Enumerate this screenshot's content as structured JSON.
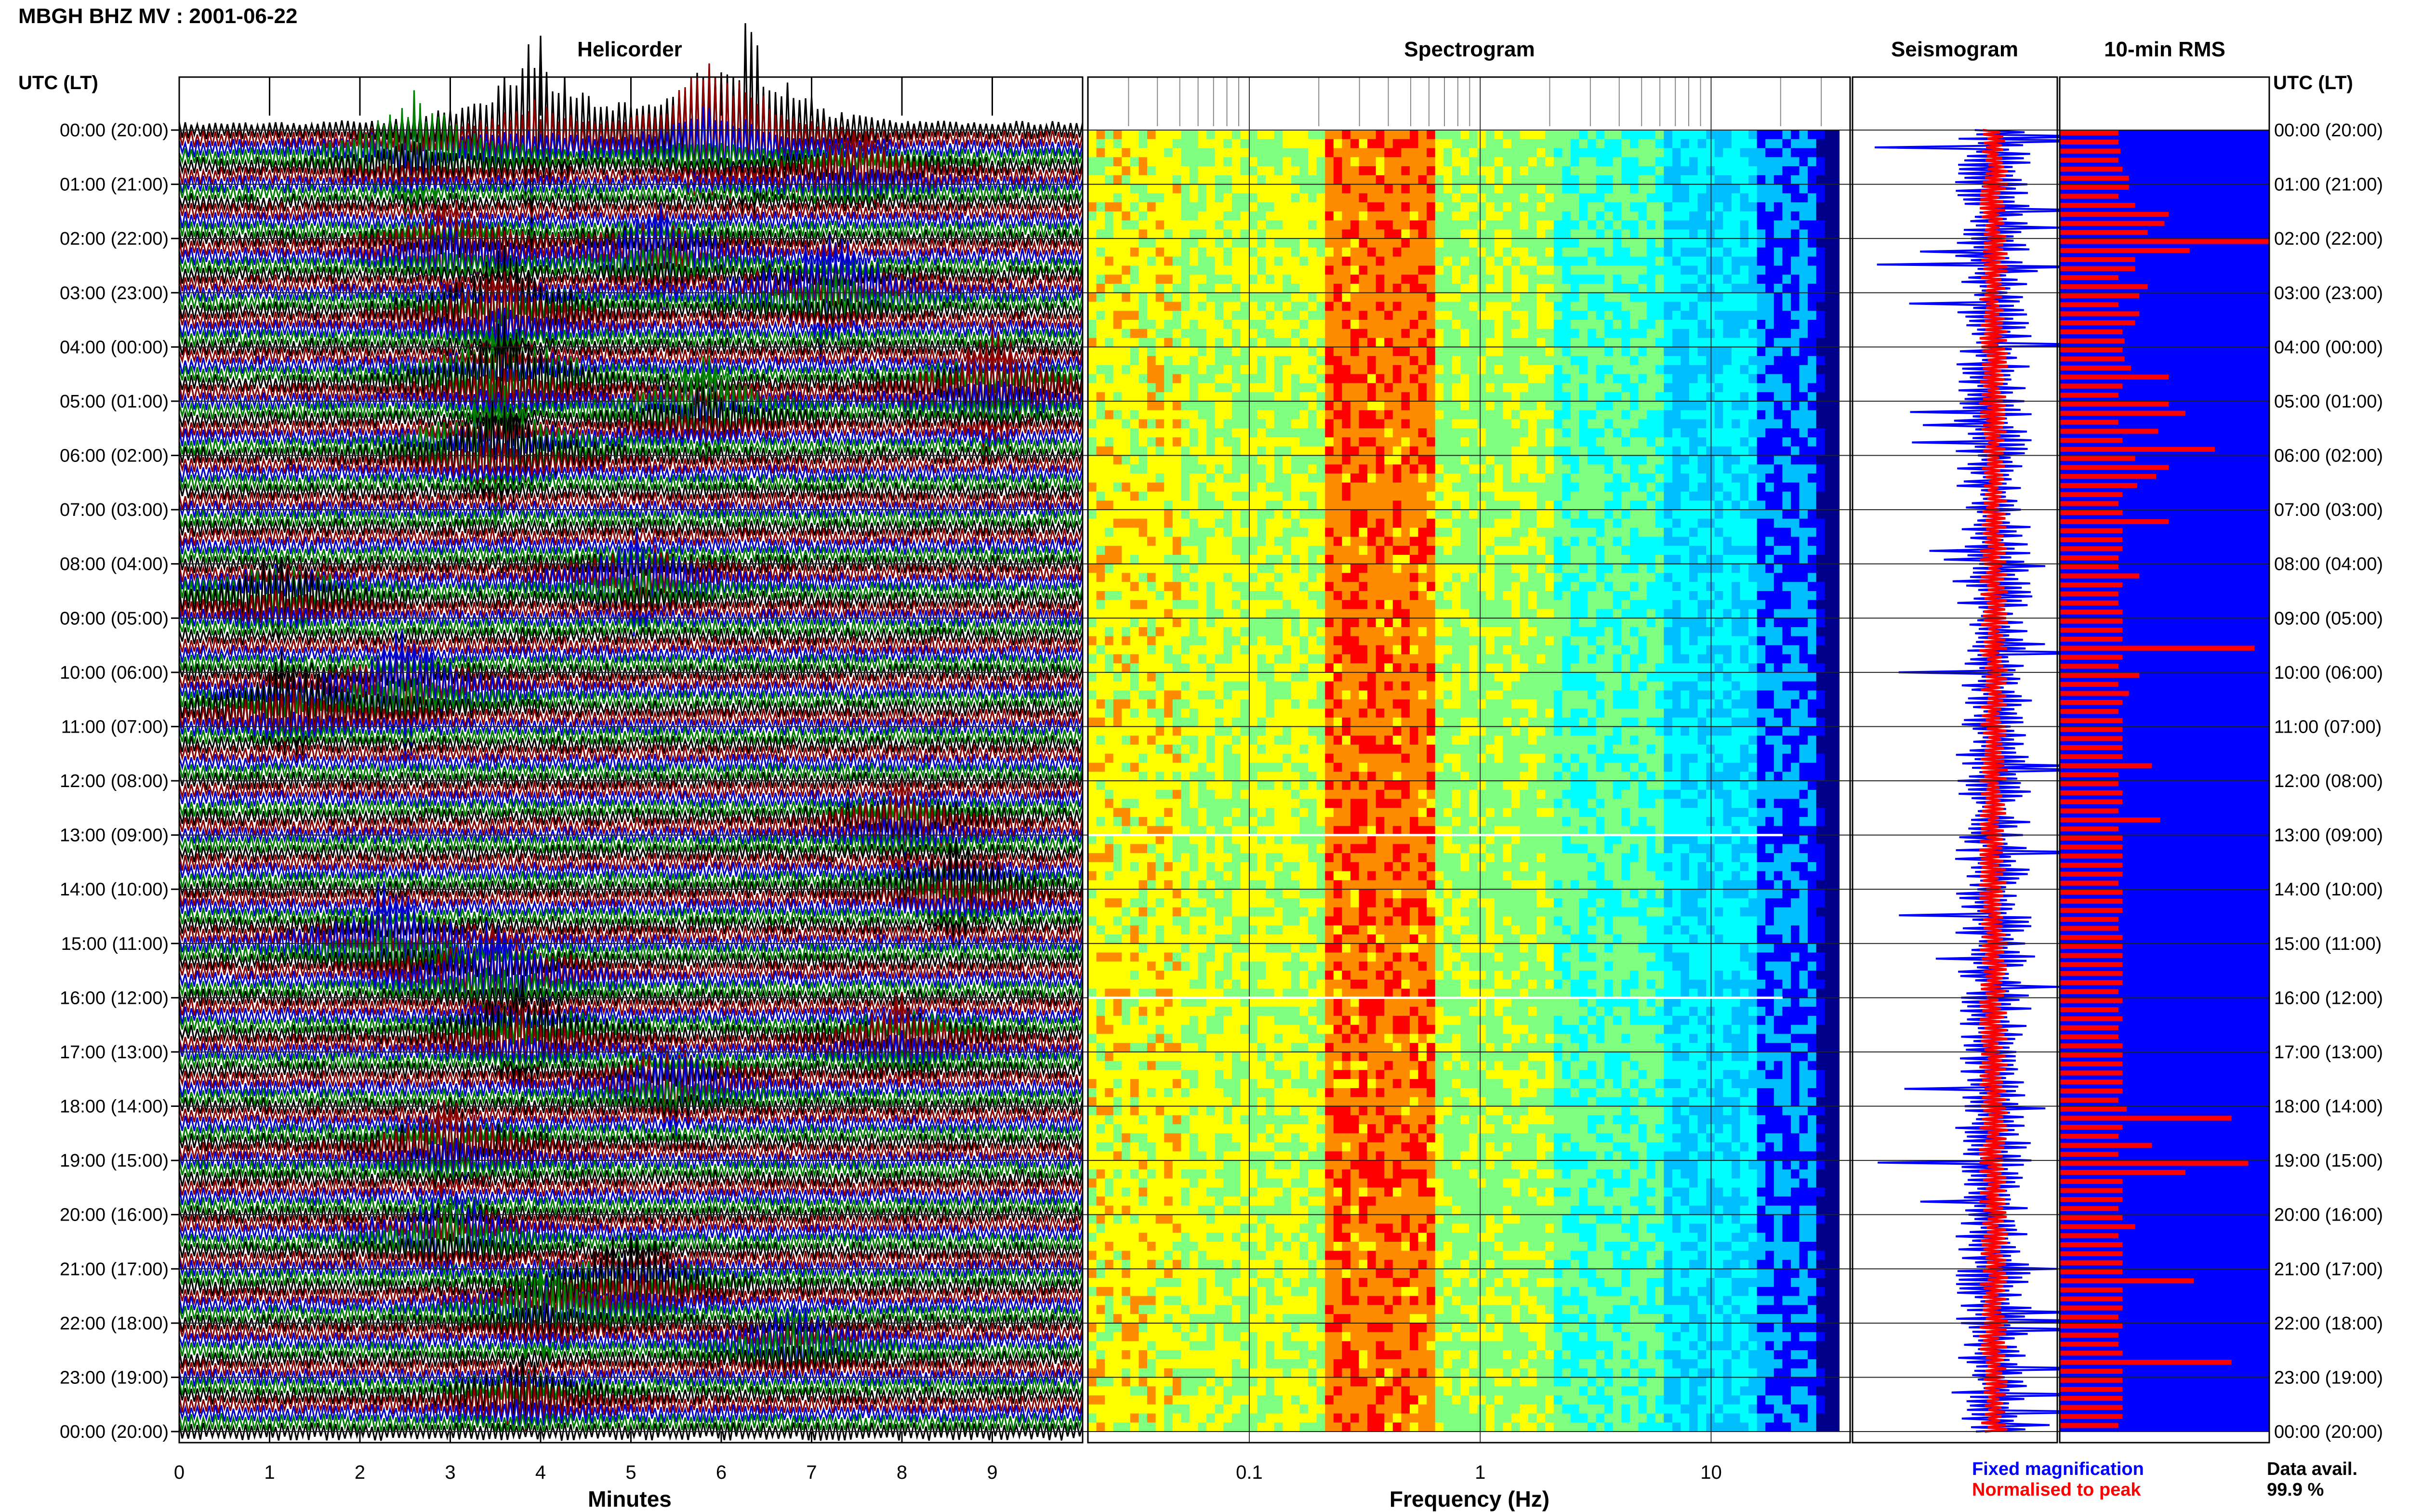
{
  "header": {
    "title": "MBGH BHZ MV : 2001-06-22"
  },
  "panels": {
    "helicorder": "Helicorder",
    "spectrogram": "Spectrogram",
    "seismogram": "Seismogram",
    "rms": "10-min RMS"
  },
  "left_axis_title": "UTC (LT)",
  "right_axis_title": "UTC (LT)",
  "time_labels": [
    "00:00 (20:00)",
    "01:00 (21:00)",
    "02:00 (22:00)",
    "03:00 (23:00)",
    "04:00 (00:00)",
    "05:00 (01:00)",
    "06:00 (02:00)",
    "07:00 (03:00)",
    "08:00 (04:00)",
    "09:00 (05:00)",
    "10:00 (06:00)",
    "11:00 (07:00)",
    "12:00 (08:00)",
    "13:00 (09:00)",
    "14:00 (10:00)",
    "15:00 (11:00)",
    "16:00 (12:00)",
    "17:00 (13:00)",
    "18:00 (14:00)",
    "19:00 (15:00)",
    "20:00 (16:00)",
    "21:00 (17:00)",
    "22:00 (18:00)",
    "23:00 (19:00)",
    "00:00 (20:00)"
  ],
  "helicorder_axis": {
    "label": "Minutes",
    "ticks": [
      "0",
      "1",
      "2",
      "3",
      "4",
      "5",
      "6",
      "7",
      "8",
      "9"
    ]
  },
  "spectrogram_axis": {
    "label": "Frequency (Hz)",
    "ticks": [
      "0.1",
      "1",
      "10"
    ]
  },
  "legend": {
    "fixed": "Fixed magnification",
    "normalised": "Normalised to peak"
  },
  "data_avail": {
    "label": "Data avail.",
    "value": "99.9 %"
  },
  "colors": {
    "trace_colors": [
      "#000000",
      "#8b0000",
      "#0000cd",
      "#008000"
    ],
    "fixed": "#0000ff",
    "normalised": "#ff0000",
    "rms_background": "#0000ff",
    "rms_bar": "#ff0000"
  },
  "chart_data": [
    {
      "type": "line",
      "title": "Helicorder",
      "xlabel": "Minutes",
      "xlim": [
        0,
        10
      ],
      "rows": 144,
      "events": [
        {
          "hour": 0.0,
          "minute": 3.9,
          "amp": 3.2,
          "color": "#000000"
        },
        {
          "hour": 0.0,
          "minute": 6.3,
          "amp": 3.0,
          "color": "#8b0000"
        },
        {
          "hour": 0.2,
          "minute": 5.8,
          "amp": 2.5,
          "color": "#0000cd"
        },
        {
          "hour": 0.5,
          "minute": 2.6,
          "amp": 2.2,
          "color": "#008000"
        },
        {
          "hour": 0.8,
          "minute": 7.5,
          "amp": 1.6,
          "color": "#000000"
        },
        {
          "hour": 2.2,
          "minute": 3.0,
          "amp": 1.8,
          "color": "#008000"
        },
        {
          "hour": 2.3,
          "minute": 5.3,
          "amp": 2.0,
          "color": "#008000"
        },
        {
          "hour": 3.0,
          "minute": 7.2,
          "amp": 2.2,
          "color": "#0000cd"
        },
        {
          "hour": 3.4,
          "minute": 3.6,
          "amp": 3.0,
          "color": "#0000cd"
        },
        {
          "hour": 4.6,
          "minute": 3.6,
          "amp": 3.2,
          "color": "#008000"
        },
        {
          "hour": 4.8,
          "minute": 9.0,
          "amp": 2.6,
          "color": "#0000cd"
        },
        {
          "hour": 5.2,
          "minute": 5.8,
          "amp": 2.0,
          "color": "#000000"
        },
        {
          "hour": 5.9,
          "minute": 3.5,
          "amp": 3.4,
          "color": "#000000"
        },
        {
          "hour": 8.3,
          "minute": 5.1,
          "amp": 2.0,
          "color": "#0000cd"
        },
        {
          "hour": 8.6,
          "minute": 1.1,
          "amp": 2.0,
          "color": "#008000"
        },
        {
          "hour": 10.3,
          "minute": 2.5,
          "amp": 2.4,
          "color": "#008000"
        },
        {
          "hour": 10.7,
          "minute": 1.2,
          "amp": 2.0,
          "color": "#0000cd"
        },
        {
          "hour": 12.8,
          "minute": 8.0,
          "amp": 1.6,
          "color": "#0000cd"
        },
        {
          "hour": 14.0,
          "minute": 8.6,
          "amp": 1.6,
          "color": "#008000"
        },
        {
          "hour": 15.0,
          "minute": 2.3,
          "amp": 1.8,
          "color": "#0000cd"
        },
        {
          "hour": 15.6,
          "minute": 3.5,
          "amp": 2.8,
          "color": "#8b0000"
        },
        {
          "hour": 16.7,
          "minute": 3.8,
          "amp": 2.2,
          "color": "#008000"
        },
        {
          "hour": 16.8,
          "minute": 8.0,
          "amp": 1.6,
          "color": "#8b0000"
        },
        {
          "hour": 17.6,
          "minute": 5.5,
          "amp": 2.0,
          "color": "#008000"
        },
        {
          "hour": 18.8,
          "minute": 3.0,
          "amp": 2.2,
          "color": "#8b0000"
        },
        {
          "hour": 20.4,
          "minute": 3.0,
          "amp": 2.0,
          "color": "#008000"
        },
        {
          "hour": 21.3,
          "minute": 5.0,
          "amp": 2.4,
          "color": "#0000cd"
        },
        {
          "hour": 21.8,
          "minute": 4.0,
          "amp": 1.8,
          "color": "#8b0000"
        },
        {
          "hour": 22.4,
          "minute": 6.8,
          "amp": 1.6,
          "color": "#000000"
        },
        {
          "hour": 23.4,
          "minute": 3.8,
          "amp": 1.6,
          "color": "#008000"
        }
      ]
    },
    {
      "type": "heatmap",
      "title": "Spectrogram",
      "xlabel": "Frequency (Hz)",
      "xscale": "log",
      "xlim": [
        0.02,
        40
      ],
      "peak_frequency_band": [
        0.2,
        0.6
      ],
      "colormap": [
        "#00008b",
        "#0000ff",
        "#00bfff",
        "#00ffff",
        "#7fff7f",
        "#ffff00",
        "#ff8c00",
        "#ff0000"
      ]
    },
    {
      "type": "line",
      "title": "Seismogram",
      "series": [
        {
          "name": "Fixed magnification",
          "color": "#0000ff"
        },
        {
          "name": "Normalised to peak",
          "color": "#ff0000"
        }
      ]
    },
    {
      "type": "bar",
      "title": "10-min RMS",
      "orientation": "horizontal",
      "rows": 144,
      "values": [
        0.28,
        0.28,
        0.29,
        0.28,
        0.3,
        0.33,
        0.33,
        0.28,
        0.36,
        0.52,
        0.5,
        0.42,
        1.0,
        0.62,
        0.36,
        0.36,
        0.28,
        0.42,
        0.38,
        0.28,
        0.38,
        0.36,
        0.3,
        0.31,
        0.3,
        0.31,
        0.34,
        0.52,
        0.3,
        0.28,
        0.52,
        0.6,
        0.28,
        0.47,
        0.3,
        0.74,
        0.36,
        0.52,
        0.46,
        0.37,
        0.3,
        0.28,
        0.3,
        0.52,
        0.3,
        0.3,
        0.3,
        0.28,
        0.28,
        0.38,
        0.3,
        0.28,
        0.28,
        0.3,
        0.3,
        0.3,
        0.3,
        0.93,
        0.3,
        0.28,
        0.38,
        0.28,
        0.33,
        0.3,
        0.28,
        0.3,
        0.3,
        0.3,
        0.3,
        0.3,
        0.44,
        0.28,
        0.28,
        0.3,
        0.3,
        0.28,
        0.48,
        0.28,
        0.3,
        0.3,
        0.3,
        0.3,
        0.3,
        0.28,
        0.3,
        0.3,
        0.3,
        0.28,
        0.28,
        0.3,
        0.3,
        0.3,
        0.3,
        0.3,
        0.3,
        0.28,
        0.3,
        0.28,
        0.3,
        0.28,
        0.28,
        0.3,
        0.3,
        0.3,
        0.3,
        0.3,
        0.3,
        0.28,
        0.32,
        0.82,
        0.3,
        0.28,
        0.44,
        0.28,
        0.9,
        0.6,
        0.3,
        0.3,
        0.3,
        0.28,
        0.3,
        0.36,
        0.28,
        0.3,
        0.3,
        0.3,
        0.3,
        0.64,
        0.3,
        0.3,
        0.3,
        0.28,
        0.3,
        0.28,
        0.28,
        0.3,
        0.82,
        0.3,
        0.3,
        0.3,
        0.3,
        0.3,
        0.3,
        0.28
      ]
    }
  ]
}
